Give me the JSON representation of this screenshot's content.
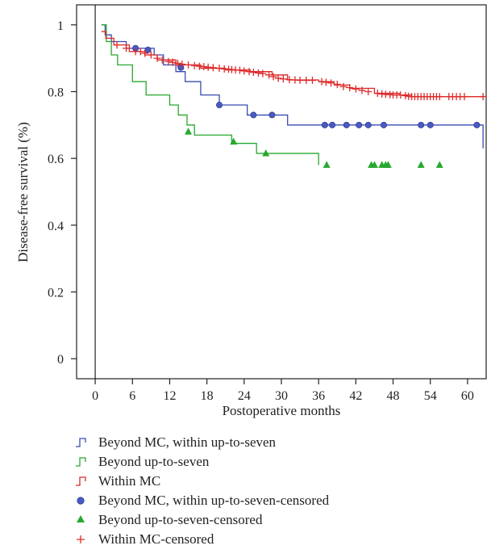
{
  "chart_data": {
    "type": "line",
    "title": "",
    "xlabel": "Postoperative months",
    "ylabel": "Disease-free survival (%)",
    "xlim": [
      -3,
      63
    ],
    "ylim": [
      -0.06,
      1.06
    ],
    "xticks": [
      0,
      6,
      12,
      18,
      24,
      30,
      36,
      42,
      48,
      54,
      60
    ],
    "yticks": [
      0,
      0.2,
      0.4,
      0.6,
      0.8,
      1
    ],
    "ytick_labels": [
      "0",
      "0.2",
      "0.4",
      "0.6",
      "0.8",
      "1"
    ],
    "grid": false,
    "legend_position": "below",
    "series": [
      {
        "name": "Beyond MC, within up-to-seven",
        "color": "#3a4bb0",
        "step": true,
        "x": [
          1.0,
          1.6,
          2.6,
          5.0,
          9.5,
          11.0,
          13.0,
          14.5,
          17.0,
          20.0,
          24.5,
          31.0,
          62.5,
          62.5
        ],
        "y": [
          1.0,
          0.97,
          0.95,
          0.93,
          0.91,
          0.88,
          0.86,
          0.83,
          0.79,
          0.76,
          0.73,
          0.7,
          0.7,
          0.63
        ]
      },
      {
        "name": "Beyond up-to-seven",
        "color": "#27a82e",
        "step": true,
        "x": [
          1.0,
          1.8,
          2.6,
          3.6,
          6.0,
          8.2,
          12.0,
          13.4,
          14.8,
          16.0,
          22.0,
          26.0,
          36.0,
          36.0
        ],
        "y": [
          1.0,
          0.95,
          0.91,
          0.88,
          0.83,
          0.79,
          0.76,
          0.73,
          0.7,
          0.67,
          0.645,
          0.615,
          0.615,
          0.58
        ]
      },
      {
        "name": "Within MC",
        "color": "#dd2a2a",
        "step": true,
        "x": [
          1.0,
          1.7,
          3.0,
          5.5,
          8.0,
          10.0,
          13.0,
          17.0,
          21.0,
          25.0,
          28.5,
          31.0,
          36.0,
          38.5,
          41.0,
          45.0,
          49.0,
          51.0,
          62.5
        ],
        "y": [
          0.98,
          0.96,
          0.94,
          0.92,
          0.91,
          0.895,
          0.88,
          0.87,
          0.865,
          0.86,
          0.85,
          0.835,
          0.83,
          0.82,
          0.81,
          0.795,
          0.79,
          0.785,
          0.785
        ]
      }
    ],
    "censored": [
      {
        "name": "Beyond MC, within up-to-seven-censored",
        "color": "#3a4bb0",
        "marker": "circle",
        "x": [
          6.5,
          8.5,
          13.8,
          20.0,
          25.5,
          28.5,
          37.0,
          38.2,
          40.5,
          42.5,
          44.0,
          46.5,
          52.5,
          54.0,
          61.5
        ],
        "y": [
          0.93,
          0.925,
          0.872,
          0.76,
          0.73,
          0.73,
          0.7,
          0.7,
          0.7,
          0.7,
          0.7,
          0.7,
          0.7,
          0.7,
          0.7
        ]
      },
      {
        "name": "Beyond up-to-seven-censored",
        "color": "#27a82e",
        "marker": "triangle",
        "x": [
          15.0,
          22.3,
          27.5,
          37.3,
          44.5,
          45.0,
          46.2,
          46.8,
          47.2,
          52.5,
          55.5
        ],
        "y": [
          0.68,
          0.65,
          0.615,
          0.58,
          0.58,
          0.58,
          0.58,
          0.58,
          0.58,
          0.58,
          0.58
        ]
      },
      {
        "name": "Within MC-censored",
        "color": "#dd2a2a",
        "marker": "plus",
        "x": [
          3.5,
          5.0,
          6.5,
          7.3,
          8.0,
          9.0,
          10.0,
          10.8,
          11.8,
          12.5,
          13.3,
          14.0,
          15.0,
          16.0,
          16.8,
          17.5,
          18.2,
          19.0,
          20.0,
          20.8,
          21.5,
          22.0,
          22.6,
          23.3,
          24.0,
          24.8,
          25.5,
          26.3,
          27.0,
          28.0,
          28.7,
          29.5,
          30.3,
          31.3,
          32.2,
          33.0,
          34.0,
          35.0,
          36.5,
          37.2,
          38.0,
          39.0,
          40.0,
          41.0,
          42.0,
          43.0,
          44.0,
          45.5,
          46.2,
          46.8,
          47.5,
          48.0,
          48.6,
          49.2,
          50.0,
          50.5,
          51.0,
          51.5,
          52.0,
          52.5,
          53.0,
          53.5,
          54.0,
          54.5,
          55.0,
          55.5,
          57.0,
          57.6,
          58.2,
          58.8,
          59.5,
          62.5
        ],
        "y": [
          0.94,
          0.93,
          0.92,
          0.92,
          0.915,
          0.91,
          0.9,
          0.895,
          0.89,
          0.888,
          0.885,
          0.882,
          0.88,
          0.878,
          0.876,
          0.875,
          0.873,
          0.872,
          0.87,
          0.868,
          0.867,
          0.866,
          0.865,
          0.864,
          0.862,
          0.86,
          0.858,
          0.856,
          0.854,
          0.85,
          0.845,
          0.84,
          0.838,
          0.836,
          0.835,
          0.834,
          0.834,
          0.834,
          0.83,
          0.828,
          0.826,
          0.822,
          0.815,
          0.812,
          0.808,
          0.804,
          0.8,
          0.795,
          0.793,
          0.792,
          0.791,
          0.79,
          0.79,
          0.79,
          0.788,
          0.786,
          0.785,
          0.785,
          0.785,
          0.785,
          0.785,
          0.785,
          0.785,
          0.785,
          0.785,
          0.785,
          0.785,
          0.785,
          0.785,
          0.785,
          0.785,
          0.785
        ]
      }
    ],
    "legend": [
      {
        "label": "Beyond MC, within up-to-seven",
        "color": "#3a4bb0",
        "symbol": "step"
      },
      {
        "label": "Beyond up-to-seven",
        "color": "#27a82e",
        "symbol": "step"
      },
      {
        "label": "Within MC",
        "color": "#dd2a2a",
        "symbol": "step"
      },
      {
        "label": "Beyond MC, within up-to-seven-censored",
        "color": "#3a4bb0",
        "symbol": "circle"
      },
      {
        "label": "Beyond up-to-seven-censored",
        "color": "#27a82e",
        "symbol": "triangle"
      },
      {
        "label": "Within MC-censored",
        "color": "#dd2a2a",
        "symbol": "plus"
      }
    ]
  }
}
